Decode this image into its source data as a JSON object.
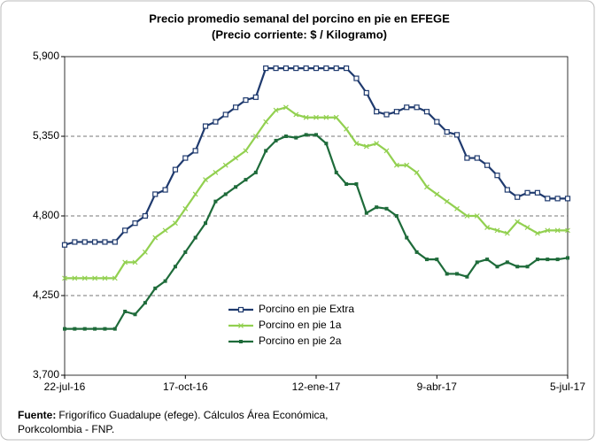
{
  "chart_data": {
    "type": "line",
    "title": "Precio promedio semanal del porcino en pie en EFEGE",
    "subtitle": "(Precio corriente: $ / Kilogramo)",
    "categories": [
      "22-jul-16",
      null,
      null,
      null,
      null,
      null,
      null,
      null,
      null,
      null,
      null,
      null,
      "17-oct-16",
      null,
      null,
      null,
      null,
      null,
      null,
      null,
      null,
      null,
      null,
      null,
      null,
      "12-ene-17",
      null,
      null,
      null,
      null,
      null,
      null,
      null,
      null,
      null,
      null,
      null,
      "9-abr-17",
      null,
      null,
      null,
      null,
      null,
      null,
      null,
      null,
      null,
      null,
      null,
      null,
      "5-jul-17"
    ],
    "series": [
      {
        "name": "Porcino en pie Extra",
        "color": "#1f3a6e",
        "marker": "square",
        "values": [
          4600,
          4620,
          4620,
          4620,
          4620,
          4620,
          4700,
          4750,
          4800,
          4950,
          4980,
          5120,
          5200,
          5250,
          5420,
          5450,
          5500,
          5550,
          5600,
          5620,
          5820,
          5820,
          5820,
          5820,
          5820,
          5820,
          5820,
          5820,
          5820,
          5750,
          5650,
          5520,
          5500,
          5520,
          5550,
          5550,
          5520,
          5450,
          5380,
          5360,
          5200,
          5200,
          5150,
          5080,
          4980,
          4930,
          4960,
          4960,
          4920,
          4920,
          4920
        ]
      },
      {
        "name": "Porcino en pie 1a",
        "color": "#92d050",
        "marker": "x",
        "values": [
          4370,
          4370,
          4370,
          4370,
          4370,
          4370,
          4480,
          4480,
          4550,
          4650,
          4700,
          4750,
          4850,
          4950,
          5050,
          5100,
          5150,
          5200,
          5250,
          5350,
          5450,
          5530,
          5550,
          5500,
          5480,
          5480,
          5480,
          5480,
          5400,
          5300,
          5280,
          5300,
          5250,
          5150,
          5150,
          5100,
          5000,
          4950,
          4900,
          4850,
          4800,
          4800,
          4720,
          4700,
          4680,
          4760,
          4720,
          4680,
          4700,
          4700,
          4700
        ]
      },
      {
        "name": "Porcino en pie 2a",
        "color": "#1e6b3a",
        "marker": "dot",
        "values": [
          4020,
          4020,
          4020,
          4020,
          4020,
          4020,
          4140,
          4120,
          4200,
          4300,
          4350,
          4450,
          4550,
          4650,
          4750,
          4900,
          4950,
          5000,
          5050,
          5100,
          5250,
          5320,
          5350,
          5340,
          5360,
          5360,
          5300,
          5100,
          5020,
          5020,
          4820,
          4860,
          4850,
          4800,
          4650,
          4550,
          4500,
          4500,
          4400,
          4400,
          4380,
          4480,
          4500,
          4450,
          4480,
          4450,
          4450,
          4500,
          4500,
          4500,
          4510
        ]
      }
    ],
    "ylim": [
      3700,
      5900
    ],
    "yticks": [
      {
        "value": 3700,
        "label": "3,700"
      },
      {
        "value": 4250,
        "label": "4,250"
      },
      {
        "value": 4800,
        "label": "4,800"
      },
      {
        "value": 5350,
        "label": "5,350"
      },
      {
        "value": 5900,
        "label": "5,900"
      }
    ],
    "grid": true,
    "legend": "bottom-center",
    "source_label": "Fuente:",
    "source_text": [
      "Frigorífico Guadalupe (efege). Cálculos Área Económica,",
      "Porkcolombia - FNP."
    ]
  }
}
